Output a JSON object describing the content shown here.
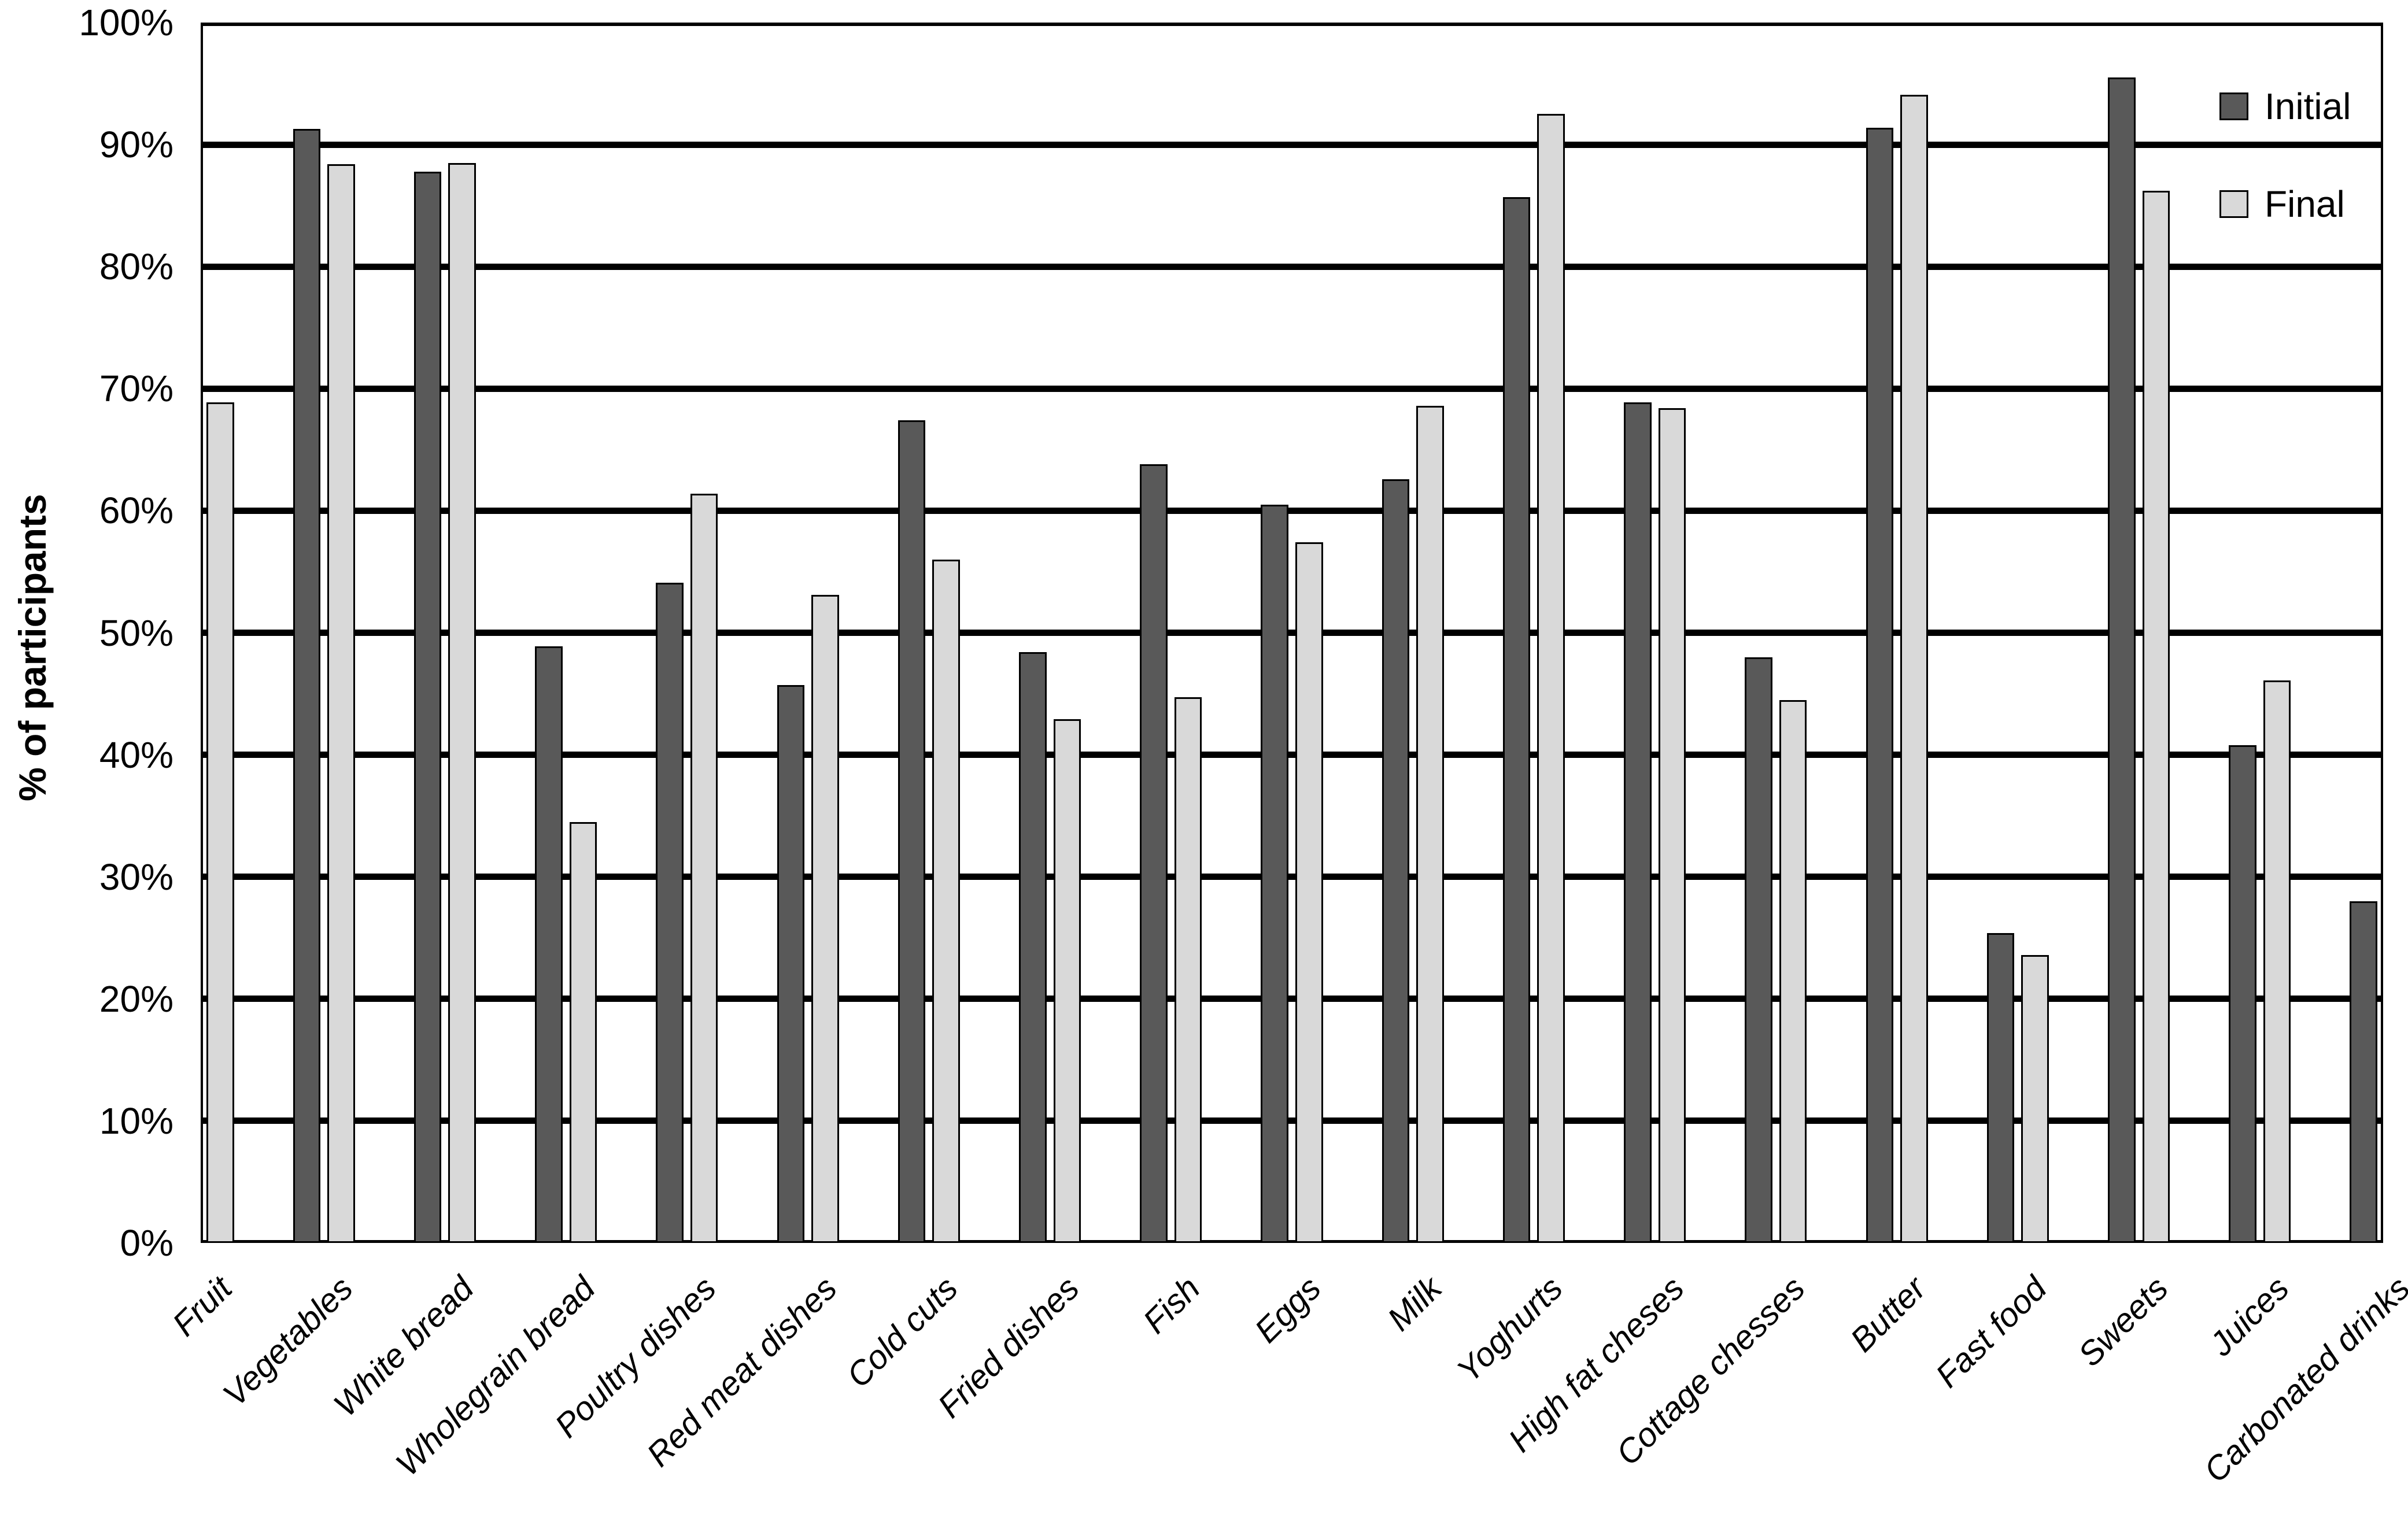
{
  "chart_data": {
    "type": "bar",
    "title": "",
    "xlabel": "",
    "ylabel": "% of participants",
    "ylim": [
      0,
      100
    ],
    "ytick_step": 10,
    "ytick_labels": [
      "100%",
      "90%",
      "80%",
      "70%",
      "60%",
      "50%",
      "40%",
      "30%",
      "20%",
      "10%",
      "0%"
    ],
    "grid": "horizontal heavy black lines at every 10%",
    "legend_position": "top-right inside plot",
    "background_color": "#FFFFFF",
    "axis_color": "#000000",
    "categories": [
      "Fruit",
      "Vegetables",
      "White bread",
      "Wholegrain bread",
      "Poultry dishes",
      "Red meat dishes",
      "Cold cuts",
      "Fried dishes",
      "Fish",
      "Eggs",
      "Milk",
      "Yoghurts",
      "High fat cheses",
      "Cottage chesses",
      "Butter",
      "Fast food",
      "Sweets",
      "Juices",
      "Carbonated drinks"
    ],
    "series": [
      {
        "name": "Initial",
        "color": "#595959",
        "values": [
          null,
          91.3,
          87.8,
          48.9,
          54.1,
          45.7,
          67.4,
          48.4,
          63.8,
          60.5,
          62.6,
          85.7,
          68.9,
          48.0,
          91.4,
          25.4,
          95.5,
          40.8,
          28.0
        ]
      },
      {
        "name": "Final",
        "color": "#D9D9D9",
        "values": [
          68.9,
          88.4,
          88.5,
          34.5,
          61.4,
          53.1,
          56.0,
          42.9,
          44.7,
          57.4,
          68.6,
          92.5,
          68.4,
          44.5,
          94.1,
          23.6,
          86.2,
          46.1,
          null
        ]
      }
    ],
    "clipping_note": "Fruit Initial bar is cut off beyond the left axis; Carbonated drinks Final bar is cut off beyond the right axis"
  }
}
